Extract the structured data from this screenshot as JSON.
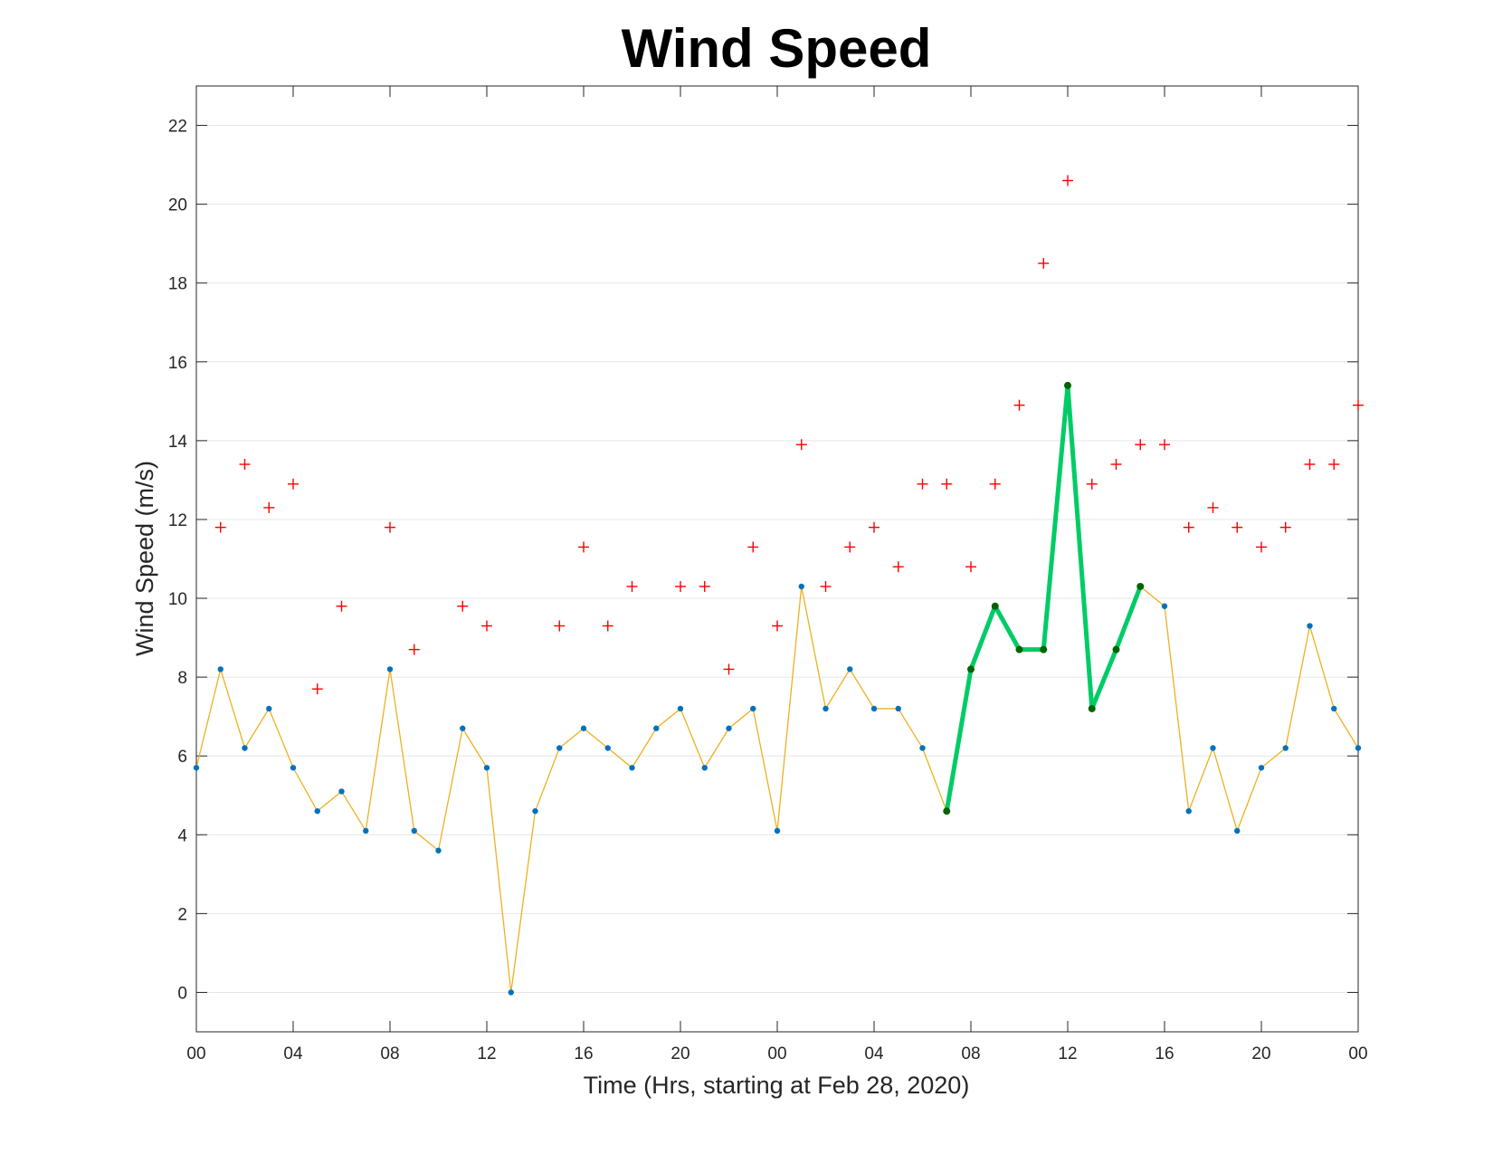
{
  "chart_data": {
    "type": "line",
    "title": "Wind Speed",
    "xlabel": "Time (Hrs, starting at Feb 28, 2020)",
    "ylabel": "Wind Speed (m/s)",
    "x_hours": [
      0,
      1,
      2,
      3,
      4,
      5,
      6,
      7,
      8,
      9,
      10,
      11,
      12,
      13,
      14,
      15,
      16,
      17,
      18,
      19,
      20,
      21,
      22,
      23,
      24,
      25,
      26,
      27,
      28,
      29,
      30,
      31,
      32,
      33,
      34,
      35,
      36,
      37,
      38,
      39,
      40,
      41,
      42,
      43,
      44,
      45,
      46,
      47,
      48
    ],
    "xlim": [
      0,
      48
    ],
    "ylim": [
      -1,
      23
    ],
    "xticks": [
      {
        "hour": 0,
        "label": "00"
      },
      {
        "hour": 4,
        "label": "04"
      },
      {
        "hour": 8,
        "label": "08"
      },
      {
        "hour": 12,
        "label": "12"
      },
      {
        "hour": 16,
        "label": "16"
      },
      {
        "hour": 20,
        "label": "20"
      },
      {
        "hour": 24,
        "label": "00"
      },
      {
        "hour": 28,
        "label": "04"
      },
      {
        "hour": 32,
        "label": "08"
      },
      {
        "hour": 36,
        "label": "12"
      },
      {
        "hour": 40,
        "label": "16"
      },
      {
        "hour": 44,
        "label": "20"
      },
      {
        "hour": 48,
        "label": "00"
      }
    ],
    "yticks": [
      {
        "value": 0,
        "label": "0"
      },
      {
        "value": 2,
        "label": "2"
      },
      {
        "value": 4,
        "label": "4"
      },
      {
        "value": 6,
        "label": "6"
      },
      {
        "value": 8,
        "label": "8"
      },
      {
        "value": 10,
        "label": "10"
      },
      {
        "value": 12,
        "label": "12"
      },
      {
        "value": 14,
        "label": "14"
      },
      {
        "value": 16,
        "label": "16"
      },
      {
        "value": 18,
        "label": "18"
      },
      {
        "value": 20,
        "label": "20"
      },
      {
        "value": 22,
        "label": "22"
      }
    ],
    "grid": "horizontal",
    "series": [
      {
        "role": "wind speed",
        "kind": "line+markers",
        "line_color": "#EDB120",
        "marker_color": "#0072BD",
        "values": [
          5.7,
          8.2,
          6.2,
          7.2,
          5.7,
          4.6,
          5.1,
          4.1,
          8.2,
          4.1,
          3.6,
          6.7,
          5.7,
          0,
          4.6,
          6.2,
          6.7,
          6.2,
          5.7,
          6.7,
          7.2,
          5.7,
          6.7,
          7.2,
          4.1,
          10.3,
          7.2,
          8.2,
          7.2,
          7.2,
          6.2,
          4.6,
          8.2,
          9.8,
          8.7,
          8.7,
          15.4,
          7.2,
          8.7,
          10.3,
          9.8,
          4.6,
          6.2,
          4.1,
          5.7,
          6.2,
          9.3,
          7.2,
          6.2
        ]
      },
      {
        "role": "wind gust",
        "kind": "plus markers",
        "marker_color": "#FF0000",
        "values": [
          null,
          11.8,
          13.4,
          12.3,
          12.9,
          7.7,
          9.8,
          null,
          11.8,
          8.7,
          null,
          9.8,
          9.3,
          null,
          null,
          9.3,
          11.3,
          9.3,
          10.3,
          null,
          10.3,
          10.3,
          8.2,
          11.3,
          9.3,
          13.9,
          10.3,
          11.3,
          11.8,
          10.8,
          12.9,
          12.9,
          10.8,
          12.9,
          14.9,
          18.5,
          20.6,
          12.9,
          13.4,
          13.9,
          13.9,
          11.8,
          12.3,
          11.8,
          11.3,
          11.8,
          13.4,
          13.4,
          14.9
        ]
      },
      {
        "role": "highlighted segment",
        "kind": "thick line",
        "line_color": "#00CC66",
        "marker_color": "#006400",
        "start_hour": 31,
        "end_hour": 39
      }
    ]
  }
}
